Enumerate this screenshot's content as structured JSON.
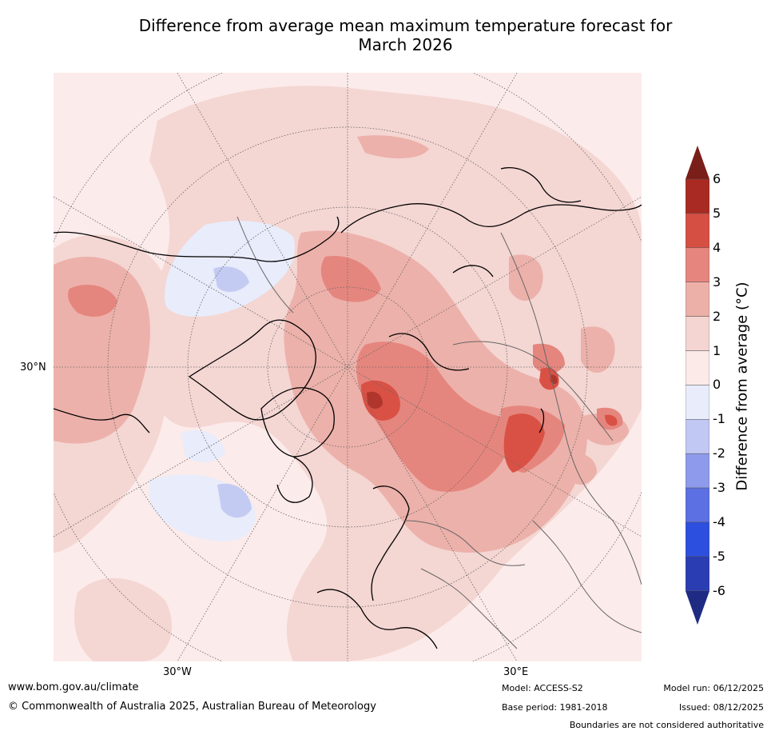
{
  "title_line1": "Difference from average mean maximum temperature forecast for",
  "title_line2": "March 2026",
  "map": {
    "projection": "north-polar-stereographic",
    "lat_labels": [
      "30°N"
    ],
    "lon_labels": [
      "30°W",
      "30°E"
    ],
    "colors": {
      "ocean_bg": "#fbebea",
      "band_0_1": "#fbebea",
      "band_1_2": "#f4d6d3",
      "band_2_3": "#ecb1aa",
      "band_3_4": "#e5867e",
      "band_4_5": "#d95145",
      "band_5_6": "#b0352c",
      "band_neg_1_0": "#e8ecfb",
      "band_neg_2_1": "#c4cbf2"
    }
  },
  "colorbar": {
    "ticks": [
      "6",
      "5",
      "4",
      "3",
      "2",
      "1",
      "0",
      "-1",
      "-2",
      "-3",
      "-4",
      "-5",
      "-6"
    ],
    "segments": [
      "#a92a22",
      "#d64f43",
      "#e6857d",
      "#edb0a9",
      "#f4d5d2",
      "#fbeae8",
      "#e9ecfb",
      "#c1c8f3",
      "#8e9bec",
      "#5c70e3",
      "#2c4fe0",
      "#2a3db2"
    ],
    "top_arrow_color": "#7a1e19",
    "bottom_arrow_color": "#1f2b83",
    "label": "Difference from average (°C)"
  },
  "footer": {
    "url": "www.bom.gov.au/climate",
    "copyright": "© Commonwealth of Australia 2025, Australian Bureau of Meteorology",
    "model": "Model: ACCESS-S2",
    "base_period": "Base period: 1981-2018",
    "model_run": "Model run: 06/12/2025",
    "issued": "Issued: 08/12/2025",
    "disclaimer": "Boundaries are not considered authoritative"
  }
}
